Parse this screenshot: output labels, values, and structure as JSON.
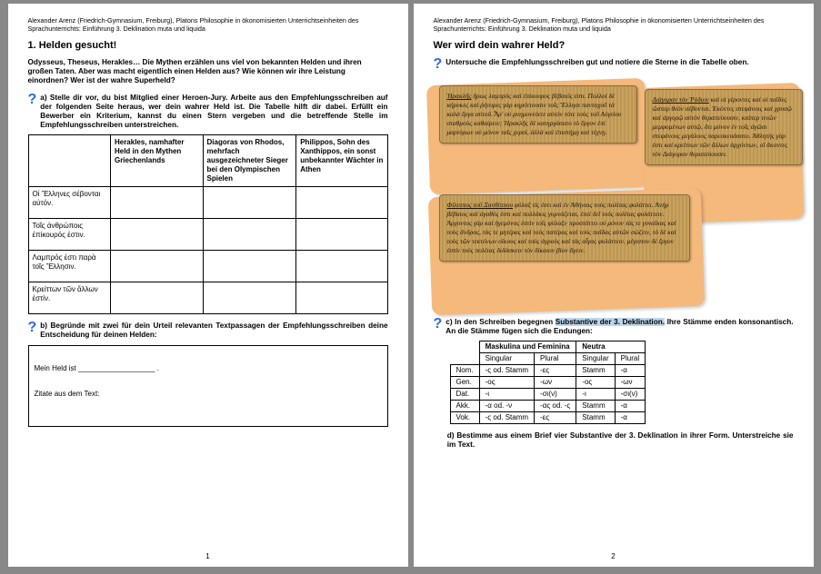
{
  "header": "Alexander Arenz (Friedrich-Gymnasium, Freiburg), Platons Philosophie in ökonomisierten Unterrichtseinheiten des Sprachunterrichts: Einführung 3. Deklination muta und liquida",
  "page1": {
    "title": "1. Helden gesucht!",
    "intro": "Odysseus, Theseus, Herakles… Die Mythen erzählen uns viel von bekannten Helden und ihren großen Taten. Aber was macht eigentlich einen Helden aus? Wie können wir ihre Leistung einordnen? Wer ist der wahre Superheld?",
    "task_a": "a) Stelle dir vor, du bist Mitglied einer Heroen-Jury. Arbeite aus den Empfehlungs­schreiben auf der folgenden Seite heraus, wer dein wahrer Held ist. Die Tabelle hilft dir dabei. Erfüllt ein Bewerber ein Kriterium, kannst du einen Stern vergeben und die betreffende Stelle im Empfehlungsschreiben unterstreichen.",
    "tbl": {
      "h1": "Herakles,\nnamhafter Held in den Mythen Griechenlands",
      "h2": "Diagoras von Rhodos, mehrfach ausgezeichneter Sieger bei den Olympischen Spielen",
      "h3": "Philippos, Sohn des Xanthippos, ein sonst unbekannter Wächter in Athen",
      "r1": "Οἱ Ἕλληνες σέβονται αὐτόν.",
      "r2": "Τοῖς ἀνθρώποις ἐπίκουρός ἐστιν.",
      "r3": "Λαμπρός ἐστι παρὰ τοῖς Ἕλλησιν.",
      "r4": "Κρείττων τῶν ἄλλων ἐστίν."
    },
    "task_b": "b) Begründe mit zwei für dein Urteil relevanten Textpassagen der Empfehlungs­schreiben deine Entscheidung für deinen Helden:",
    "box_line1": "Mein Held ist ___________________ .",
    "box_line2": "Zitate aus dem Text:",
    "pagenum": "1"
  },
  "page2": {
    "title": "Wer wird dein wahrer Held?",
    "intro": "Untersuche die Empfehlungsschreiben gut und notiere die Sterne in die Tabelle oben.",
    "scroll1_head": "Ἡρακλῆς",
    "scroll1": " ἥρως λαμπρὸς καὶ ἐπίκουρος βέβαιός ἐστι. Πολλοὶ δὲ κήρυκες καὶ ῥήτορες γὰρ κηρύττουσιν τοῖς Ἕλλησι πανταχοῦ τὰ καλὰ ἔργα αὐτοῦ. Ἆρ' οὐ μνημονεύετε αὐτὸν τότε τοὺς τοῦ Αὐγείου σταθμοὺς καθαίρειν; Ἡρακλῆς δὲ κατηργάσατο τὸ ἔργον ἐπὶ μαρτύρων οὐ μόνον ταῖς χερσί, ἀλλὰ καὶ ἐπιστήμῃ καὶ τέχνῃ.",
    "scroll2_head": "Διάγοραν τὸν Ῥόδιον",
    "scroll2": " καὶ οἱ γέροντες καὶ οἱ παῖδες ὥσπερ θεὸν σέβονται. Ἑκόντες στεφάνοις καὶ χρυσῷ καὶ ἀργυρῷ αὐτὸν θεραπεύουσιν, καίπερ τινῶν μεμφομένων αὐτῷ, ὅτι μόνον ἐν τοῖς ἀγῶσι στεφάνους μεγάλους παρεσκευάσατο. Ἀθλητὴς γάρ ἐστι καὶ κρείττων τῶν ἄλλων ἀρχόντων, οἳ ἄκοντες τὸν Διάγοραν θεραπεύουσιν.",
    "scroll3_head": "Φίλιππος τοῦ Ξανθίππου",
    "scroll3": " φύλαξ τίς ἐστι καὶ ἐν Ἀθήναις τοὺς πολίτας φυλάττει. Ἀνὴρ βέβαιος καὶ ἀγαθός ἐστι καὶ πολλάκις γυμνάζεται, ἐπεὶ δεῖ τοὺς πολίτας φυλάττειν. Ἀρχοντος γὰρ καὶ ἡγεμόνος ἐστὶν τοῖς φύλαξι· προστάττει οὐ μόνον τάς τε γυναῖκας καὶ τοὺς ἄνδρας, τάς τε μητέρας καὶ τοὺς πατέρας καὶ τοὺς παῖδας αὐτῶν σώζειν, τὸ δὲ καὶ τοὺς τῶν τεκτόνων οἴκους καὶ τοὺς ἀγροὺς καὶ τὰς αἶγας φυλάττειν. μέγιστον δὲ ἔργον ἐστὶν τοὺς πολίτας διδάσκειν τὸν δίκαιον βίον ἄγειν.",
    "task_c_1": "c) In den Schreiben begegnen ",
    "task_c_hl": "Substantive der 3. Deklination.",
    "task_c_2": " Ihre Stämme enden konsonantisch. An die Stämme fügen sich die Endungen:",
    "decl": {
      "group1": "Maskulina und Feminina",
      "group2": "Neutra",
      "sg": "Singular",
      "pl": "Plural",
      "rows": [
        {
          "c": "Nom.",
          "a": "-ς od. Stamm",
          "b": "-ες",
          "d": "Stamm",
          "e": "-α"
        },
        {
          "c": "Gen.",
          "a": "-ος",
          "b": "-ων",
          "d": "-ος",
          "e": "-ων"
        },
        {
          "c": "Dat.",
          "a": "-ι",
          "b": "-σι(ν)",
          "d": "-ι",
          "e": "-σι(ν)"
        },
        {
          "c": "Akk.",
          "a": "-α od. -ν",
          "b": "-ας od. -ς",
          "d": "Stamm",
          "e": "-α"
        },
        {
          "c": "Vok.",
          "a": "-ς od. Stamm",
          "b": "-ες",
          "d": "Stamm",
          "e": "-α"
        }
      ]
    },
    "task_d": "d) Bestimme aus einem Brief vier Substantive der 3. Deklination in ihrer Form. Unterstreiche sie im Text.",
    "pagenum": "2"
  }
}
